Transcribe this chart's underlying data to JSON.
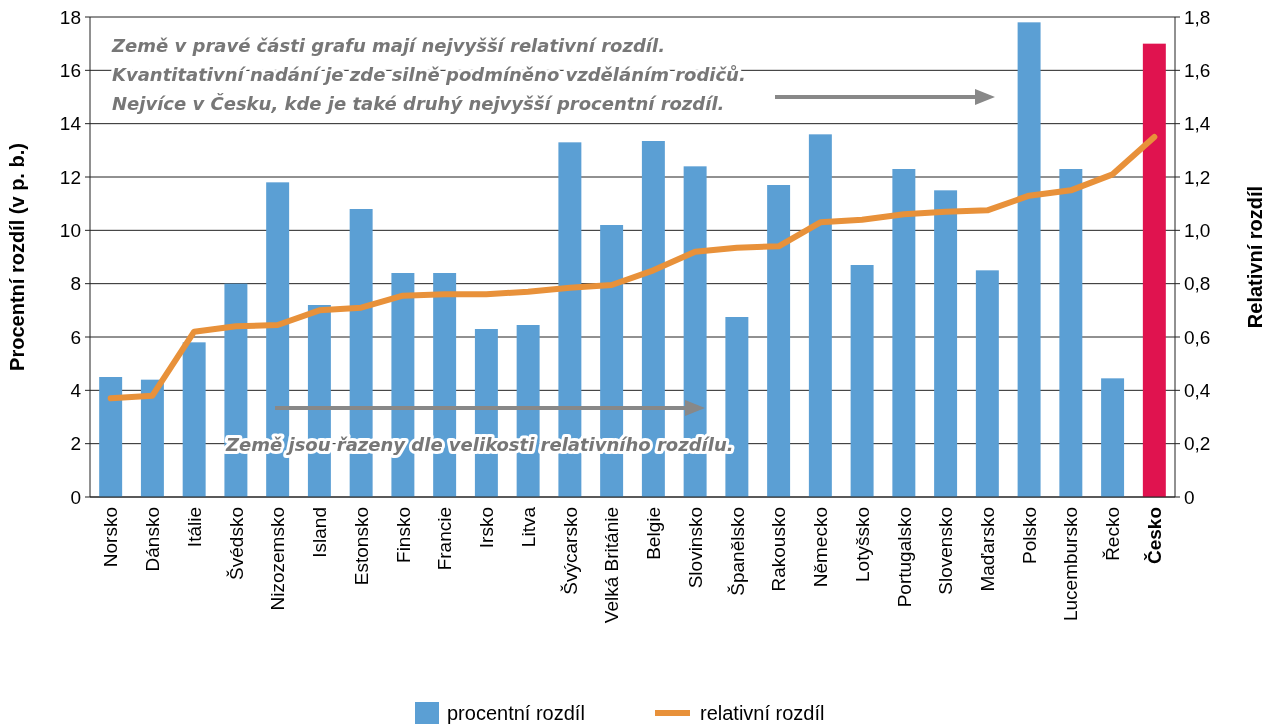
{
  "chart_data": {
    "type": "bar",
    "ylabel": "Procentní rozdíl (v p. b.)",
    "y2label": "Relativní rozdíl",
    "categories": [
      "Norsko",
      "Dánsko",
      "Itálie",
      "Švédsko",
      "Nizozemsko",
      "Island",
      "Estonsko",
      "Finsko",
      "Francie",
      "Irsko",
      "Litva",
      "Švýcarsko",
      "Velká Británie",
      "Belgie",
      "Slovinsko",
      "Španělsko",
      "Rakousko",
      "Německo",
      "Lotyšsko",
      "Portugalsko",
      "Slovensko",
      "Maďarsko",
      "Polsko",
      "Lucembursko",
      "Řecko",
      "Česko"
    ],
    "series": [
      {
        "name": "procentní rozdíl",
        "color": "#5b9fd4",
        "colors": [
          "#5b9fd4",
          "#5b9fd4",
          "#5b9fd4",
          "#5b9fd4",
          "#5b9fd4",
          "#5b9fd4",
          "#5b9fd4",
          "#5b9fd4",
          "#5b9fd4",
          "#5b9fd4",
          "#5b9fd4",
          "#5b9fd4",
          "#5b9fd4",
          "#5b9fd4",
          "#5b9fd4",
          "#5b9fd4",
          "#5b9fd4",
          "#5b9fd4",
          "#5b9fd4",
          "#5b9fd4",
          "#5b9fd4",
          "#5b9fd4",
          "#5b9fd4",
          "#5b9fd4",
          "#5b9fd4",
          "#e0134f"
        ],
        "values": [
          4.5,
          4.4,
          5.8,
          8.0,
          11.8,
          7.2,
          10.8,
          8.4,
          8.4,
          6.3,
          6.45,
          13.3,
          10.2,
          13.35,
          12.4,
          6.75,
          11.7,
          13.6,
          8.7,
          12.3,
          11.5,
          8.5,
          17.8,
          12.3,
          4.45,
          17.0
        ]
      },
      {
        "name": "relativní rozdíl",
        "type": "line",
        "axis": "y2",
        "color": "#e8913a",
        "values": [
          0.37,
          0.38,
          0.62,
          0.64,
          0.645,
          0.7,
          0.71,
          0.755,
          0.76,
          0.76,
          0.77,
          0.785,
          0.795,
          0.85,
          0.92,
          0.935,
          0.94,
          1.03,
          1.04,
          1.06,
          1.07,
          1.075,
          1.13,
          1.15,
          1.21,
          1.35
        ]
      }
    ],
    "ylim": [
      0,
      18
    ],
    "yticks": [
      0,
      2,
      4,
      6,
      8,
      10,
      12,
      14,
      16,
      18
    ],
    "y2lim": [
      0,
      1.8
    ],
    "y2ticks": [
      {
        "value": 0,
        "label": "0"
      },
      {
        "value": 0.2,
        "label": "0,2"
      },
      {
        "value": 0.4,
        "label": "0,4"
      },
      {
        "value": 0.6,
        "label": "0,6"
      },
      {
        "value": 0.8,
        "label": "0,8"
      },
      {
        "value": 1.0,
        "label": "1,0"
      },
      {
        "value": 1.2,
        "label": "1,2"
      },
      {
        "value": 1.4,
        "label": "1,4"
      },
      {
        "value": 1.6,
        "label": "1,6"
      },
      {
        "value": 1.8,
        "label": "1,8"
      }
    ],
    "grid": "y",
    "legend": "bottom",
    "marker": "none",
    "line_style": "solid",
    "annotations": [
      "Země v pravé části grafu mají nejvyšší relativní rozdíl.",
      "Kvantitativní nadání je zde silně podmíněno vzděláním rodičů.",
      "Nejvíce v Česku, kde je také druhý nejvyšší procentní rozdíl.",
      "Země jsou řazeny dle velikosti relativního rozdílu."
    ]
  }
}
